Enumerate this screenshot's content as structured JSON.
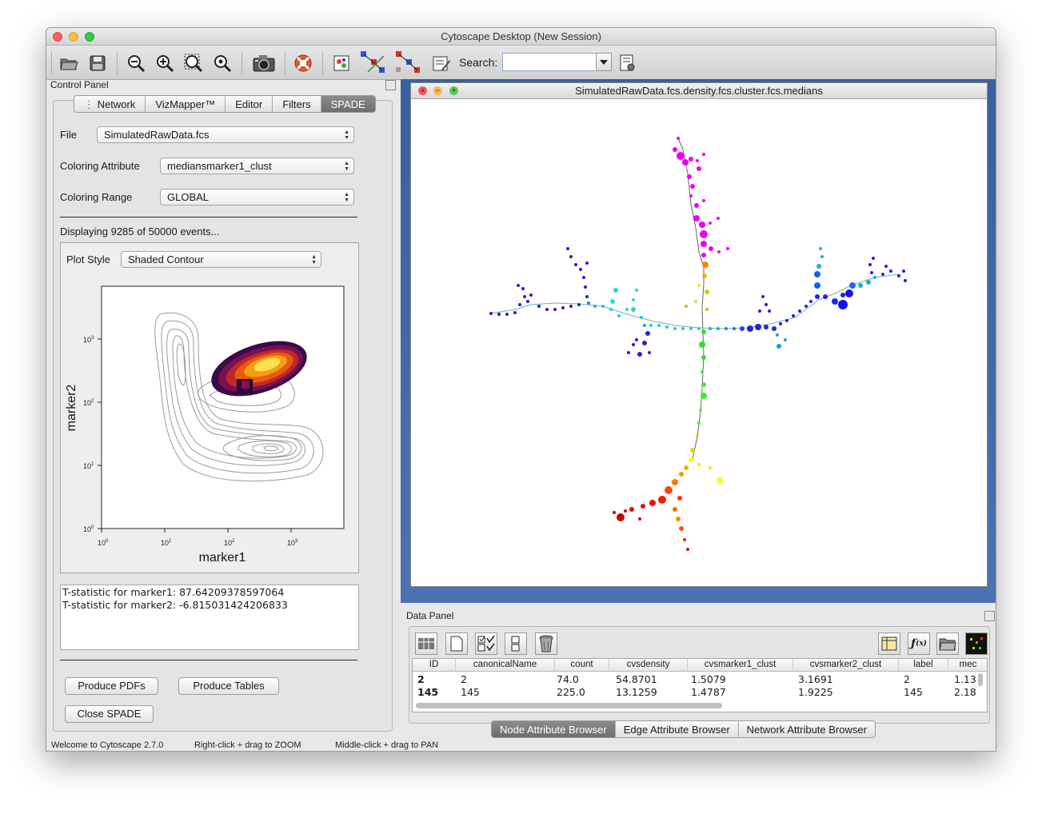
{
  "window": {
    "title": "Cytoscape Desktop (New Session)"
  },
  "toolbar": {
    "icons": [
      "open-folder-icon",
      "save-icon",
      "zoom-out-icon",
      "zoom-in-icon",
      "zoom-fit-icon",
      "zoom-selected-icon",
      "camera-icon",
      "help-lifebuoy-icon",
      "attribute-layout-icon",
      "network-select-icon",
      "network-layout-icon",
      "edit-icon"
    ],
    "search_label": "Search:",
    "search_value": ""
  },
  "control_panel": {
    "header": "Control Panel",
    "tabs": [
      {
        "label": "Network",
        "active": false
      },
      {
        "label": "VizMapper™",
        "active": false
      },
      {
        "label": "Editor",
        "active": false
      },
      {
        "label": "Filters",
        "active": false
      },
      {
        "label": "SPADE",
        "active": true
      }
    ],
    "file_label": "File",
    "file_value": "SimulatedRawData.fcs",
    "coloring_attribute_label": "Coloring Attribute",
    "coloring_attribute_value": "mediansmarker1_clust",
    "coloring_range_label": "Coloring Range",
    "coloring_range_value": "GLOBAL",
    "displaying_text": "Displaying 9285 of 50000 events...",
    "plot_style_label": "Plot Style",
    "plot_style_value": "Shaded Contour",
    "plot": {
      "xlabel": "marker1",
      "ylabel": "marker2",
      "x_ticks": [
        "10",
        "10",
        "10",
        "10"
      ],
      "x_tick_exp": [
        "0",
        "1",
        "2",
        "3"
      ],
      "y_ticks": [
        "10",
        "10",
        "10",
        "10"
      ],
      "y_tick_exp": [
        "0",
        "1",
        "2",
        "3"
      ]
    },
    "tstat_lines": [
      "T-statistic for marker1: 87.64209378597064",
      "T-statistic for marker2: -6.815031424206833"
    ],
    "buttons": {
      "produce_pdfs": "Produce PDFs",
      "produce_tables": "Produce Tables",
      "close_spade": "Close SPADE"
    }
  },
  "network_view": {
    "title": "SimulatedRawData.fcs.density.fcs.cluster.fcs.medians"
  },
  "data_panel": {
    "header": "Data Panel",
    "columns": [
      "ID",
      "canonicalName",
      "count",
      "cvsdensity",
      "cvsmarker1_clust",
      "cvsmarker2_clust",
      "label",
      "mec"
    ],
    "rows": [
      [
        "2",
        "2",
        "74.0",
        "54.8701",
        "1.5079",
        "3.1691",
        "2",
        "1.13"
      ],
      [
        "145",
        "145",
        "225.0",
        "13.1259",
        "1.4787",
        "1.9225",
        "145",
        "2.18"
      ]
    ],
    "tabs": [
      {
        "label": "Node Attribute Browser",
        "active": true
      },
      {
        "label": "Edge Attribute Browser",
        "active": false
      },
      {
        "label": "Network Attribute Browser",
        "active": false
      }
    ]
  },
  "status_bar": {
    "welcome": "Welcome to Cytoscape 2.7.0",
    "right_click": "Right-click + drag to ZOOM",
    "middle_click": "Middle-click + drag to PAN"
  }
}
